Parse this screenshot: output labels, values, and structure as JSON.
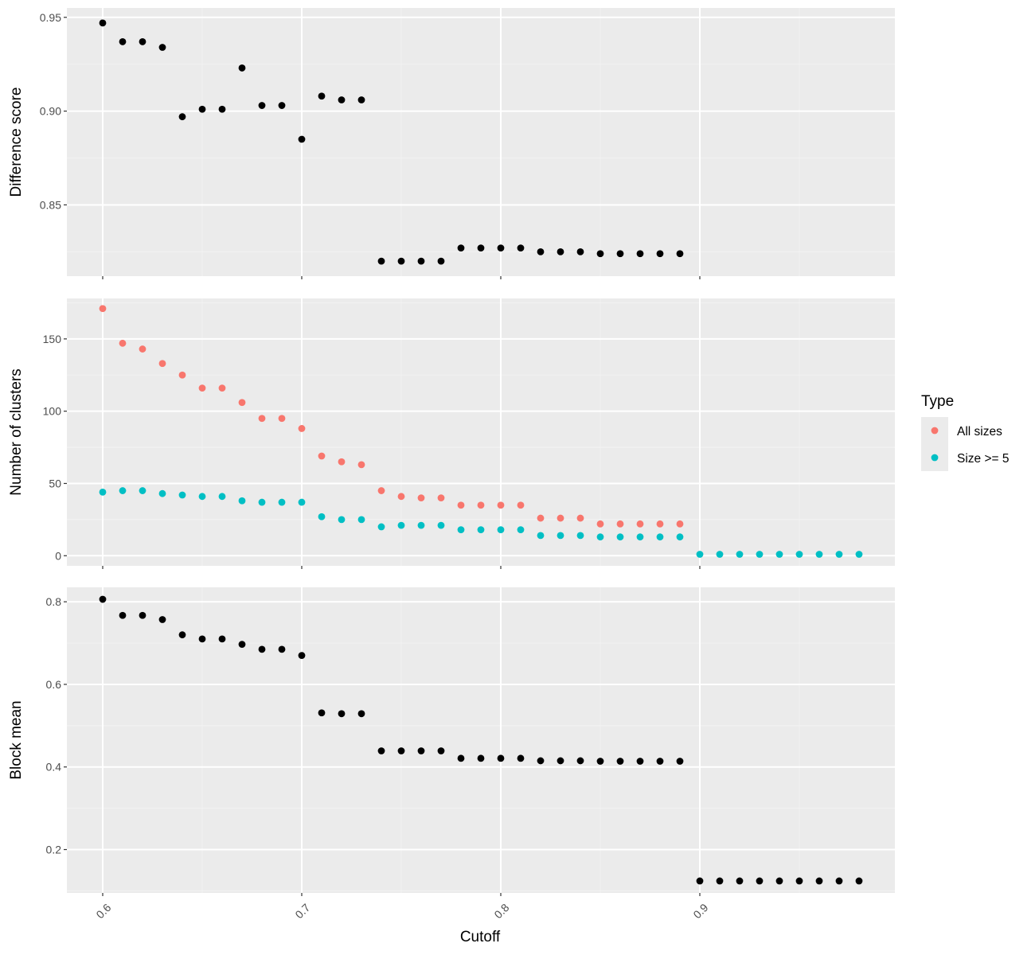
{
  "chart_data": {
    "type": "scatter",
    "shared_x": {
      "label": "Cutoff",
      "ticks": [
        0.6,
        0.7,
        0.8,
        0.9
      ],
      "tick_labels": [
        "0.6",
        "0.7",
        "0.8",
        "0.9"
      ],
      "range": [
        0.582,
        0.998
      ]
    },
    "grid": true,
    "panels": [
      {
        "id": "difference",
        "ylabel": "Difference score",
        "ylim": [
          0.812,
          0.955
        ],
        "yticks": [
          0.85,
          0.9,
          0.95
        ],
        "ytick_labels": [
          "0.85",
          "0.90",
          "0.95"
        ],
        "series": [
          {
            "color": "#000000",
            "points": [
              [
                0.6,
                0.947
              ],
              [
                0.61,
                0.937
              ],
              [
                0.62,
                0.937
              ],
              [
                0.63,
                0.934
              ],
              [
                0.64,
                0.897
              ],
              [
                0.65,
                0.901
              ],
              [
                0.66,
                0.901
              ],
              [
                0.67,
                0.923
              ],
              [
                0.68,
                0.903
              ],
              [
                0.69,
                0.903
              ],
              [
                0.7,
                0.885
              ],
              [
                0.71,
                0.908
              ],
              [
                0.72,
                0.906
              ],
              [
                0.73,
                0.906
              ],
              [
                0.74,
                0.82
              ],
              [
                0.75,
                0.82
              ],
              [
                0.76,
                0.82
              ],
              [
                0.77,
                0.82
              ],
              [
                0.78,
                0.827
              ],
              [
                0.79,
                0.827
              ],
              [
                0.8,
                0.827
              ],
              [
                0.81,
                0.827
              ],
              [
                0.82,
                0.825
              ],
              [
                0.83,
                0.825
              ],
              [
                0.84,
                0.825
              ],
              [
                0.85,
                0.824
              ],
              [
                0.86,
                0.824
              ],
              [
                0.87,
                0.824
              ],
              [
                0.88,
                0.824
              ],
              [
                0.89,
                0.824
              ]
            ]
          }
        ]
      },
      {
        "id": "clusters",
        "ylabel": "Number of clusters",
        "ylim": [
          -7,
          178
        ],
        "yticks": [
          0,
          50,
          100,
          150
        ],
        "ytick_labels": [
          "0",
          "50",
          "100",
          "150"
        ],
        "series": [
          {
            "name": "All sizes",
            "color": "#F8766D",
            "points": [
              [
                0.6,
                171
              ],
              [
                0.61,
                147
              ],
              [
                0.62,
                143
              ],
              [
                0.63,
                133
              ],
              [
                0.64,
                125
              ],
              [
                0.65,
                116
              ],
              [
                0.66,
                116
              ],
              [
                0.67,
                106
              ],
              [
                0.68,
                95
              ],
              [
                0.69,
                95
              ],
              [
                0.7,
                88
              ],
              [
                0.71,
                69
              ],
              [
                0.72,
                65
              ],
              [
                0.73,
                63
              ],
              [
                0.74,
                45
              ],
              [
                0.75,
                41
              ],
              [
                0.76,
                40
              ],
              [
                0.77,
                40
              ],
              [
                0.78,
                35
              ],
              [
                0.79,
                35
              ],
              [
                0.8,
                35
              ],
              [
                0.81,
                35
              ],
              [
                0.82,
                26
              ],
              [
                0.83,
                26
              ],
              [
                0.84,
                26
              ],
              [
                0.85,
                22
              ],
              [
                0.86,
                22
              ],
              [
                0.87,
                22
              ],
              [
                0.88,
                22
              ],
              [
                0.89,
                22
              ]
            ]
          },
          {
            "name": "Size >= 5",
            "color": "#00BFC4",
            "points": [
              [
                0.6,
                44
              ],
              [
                0.61,
                45
              ],
              [
                0.62,
                45
              ],
              [
                0.63,
                43
              ],
              [
                0.64,
                42
              ],
              [
                0.65,
                41
              ],
              [
                0.66,
                41
              ],
              [
                0.67,
                38
              ],
              [
                0.68,
                37
              ],
              [
                0.69,
                37
              ],
              [
                0.7,
                37
              ],
              [
                0.71,
                27
              ],
              [
                0.72,
                25
              ],
              [
                0.73,
                25
              ],
              [
                0.74,
                20
              ],
              [
                0.75,
                21
              ],
              [
                0.76,
                21
              ],
              [
                0.77,
                21
              ],
              [
                0.78,
                18
              ],
              [
                0.79,
                18
              ],
              [
                0.8,
                18
              ],
              [
                0.81,
                18
              ],
              [
                0.82,
                14
              ],
              [
                0.83,
                14
              ],
              [
                0.84,
                14
              ],
              [
                0.85,
                13
              ],
              [
                0.86,
                13
              ],
              [
                0.87,
                13
              ],
              [
                0.88,
                13
              ],
              [
                0.89,
                13
              ],
              [
                0.9,
                1
              ],
              [
                0.91,
                1
              ],
              [
                0.92,
                1
              ],
              [
                0.93,
                1
              ],
              [
                0.94,
                1
              ],
              [
                0.95,
                1
              ],
              [
                0.96,
                1
              ],
              [
                0.97,
                1
              ],
              [
                0.98,
                1
              ]
            ]
          }
        ]
      },
      {
        "id": "block",
        "ylabel": "Block mean",
        "ylim": [
          0.095,
          0.835
        ],
        "yticks": [
          0.2,
          0.4,
          0.6,
          0.8
        ],
        "ytick_labels": [
          "0.2",
          "0.4",
          "0.6",
          "0.8"
        ],
        "series": [
          {
            "color": "#000000",
            "points": [
              [
                0.6,
                0.806
              ],
              [
                0.61,
                0.767
              ],
              [
                0.62,
                0.767
              ],
              [
                0.63,
                0.757
              ],
              [
                0.64,
                0.72
              ],
              [
                0.65,
                0.71
              ],
              [
                0.66,
                0.71
              ],
              [
                0.67,
                0.697
              ],
              [
                0.68,
                0.685
              ],
              [
                0.69,
                0.685
              ],
              [
                0.7,
                0.67
              ],
              [
                0.71,
                0.531
              ],
              [
                0.72,
                0.529
              ],
              [
                0.73,
                0.529
              ],
              [
                0.74,
                0.439
              ],
              [
                0.75,
                0.439
              ],
              [
                0.76,
                0.439
              ],
              [
                0.77,
                0.439
              ],
              [
                0.78,
                0.421
              ],
              [
                0.79,
                0.421
              ],
              [
                0.8,
                0.421
              ],
              [
                0.81,
                0.421
              ],
              [
                0.82,
                0.415
              ],
              [
                0.83,
                0.415
              ],
              [
                0.84,
                0.415
              ],
              [
                0.85,
                0.414
              ],
              [
                0.86,
                0.414
              ],
              [
                0.87,
                0.414
              ],
              [
                0.88,
                0.414
              ],
              [
                0.89,
                0.414
              ],
              [
                0.9,
                0.124
              ],
              [
                0.91,
                0.124
              ],
              [
                0.92,
                0.124
              ],
              [
                0.93,
                0.124
              ],
              [
                0.94,
                0.124
              ],
              [
                0.95,
                0.124
              ],
              [
                0.96,
                0.124
              ],
              [
                0.97,
                0.124
              ],
              [
                0.98,
                0.124
              ]
            ]
          }
        ]
      }
    ],
    "legend": {
      "title": "Type",
      "position": "right",
      "entries": [
        {
          "label": "All sizes",
          "color": "#F8766D"
        },
        {
          "label": "Size >= 5",
          "color": "#00BFC4"
        }
      ]
    },
    "colors": {
      "panel_background": "#EBEBEB",
      "grid_major": "#FFFFFF",
      "grid_minor": "#F2F2F2"
    }
  }
}
